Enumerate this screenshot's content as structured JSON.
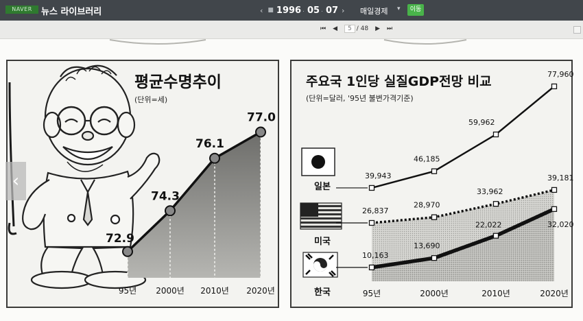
{
  "topbar": {
    "logo": "NAVER",
    "app_title": "뉴스 라이브러리",
    "date": {
      "prev": "‹",
      "year": "1996",
      "year_sep": ".",
      "month": "05",
      "month_sep": ".",
      "day": "07",
      "next": "›"
    },
    "paper": "매일경제",
    "go_label": "이동"
  },
  "pager": {
    "first": "⏮",
    "prev": "◀",
    "current": "5",
    "total": "/ 48",
    "next": "▶",
    "last": "⏭"
  },
  "side_tab": {
    "icon": "chevron-left-icon",
    "glyph": "‹"
  },
  "charts": {
    "left": {
      "title": "평균수명추이",
      "unit": "(단위=세)"
    },
    "right": {
      "title": "주요국 1인당 실질GDP전망 비교",
      "unit": "(단위=달러, '95년 불변가격기준)"
    }
  },
  "chart_data": [
    {
      "type": "area",
      "title": "평균수명추이",
      "subtitle": "(단위=세)",
      "categories": [
        "95년",
        "2000년",
        "2010년",
        "2020년"
      ],
      "values": [
        72.9,
        74.3,
        76.1,
        77.0
      ],
      "value_labels": [
        "72.9",
        "74.3",
        "76.1",
        "77.0"
      ],
      "ylim": [
        72.0,
        78.0
      ],
      "grid": false,
      "legend": "none"
    },
    {
      "type": "line",
      "title": "주요국 1인당 실질GDP전망 비교",
      "subtitle": "(단위=달러, '95년 불변가격기준)",
      "categories": [
        "95년",
        "2000년",
        "2010년",
        "2020년"
      ],
      "series": [
        {
          "name": "일본",
          "values": [
            39943,
            46185,
            59962,
            77960
          ],
          "labels": [
            "39,943",
            "46,185",
            "59,962",
            "77,960"
          ],
          "style": "solid"
        },
        {
          "name": "미국",
          "values": [
            26837,
            28970,
            33962,
            39181
          ],
          "labels": [
            "26,837",
            "28,970",
            "33,962",
            "39,181"
          ],
          "style": "dotted"
        },
        {
          "name": "한국",
          "values": [
            10163,
            13690,
            22022,
            32020
          ],
          "labels": [
            "10,163",
            "13,690",
            "22,022",
            "32,020"
          ],
          "style": "thick"
        }
      ],
      "ylim": [
        5000,
        80000
      ],
      "grid": false,
      "legend": "left"
    }
  ]
}
